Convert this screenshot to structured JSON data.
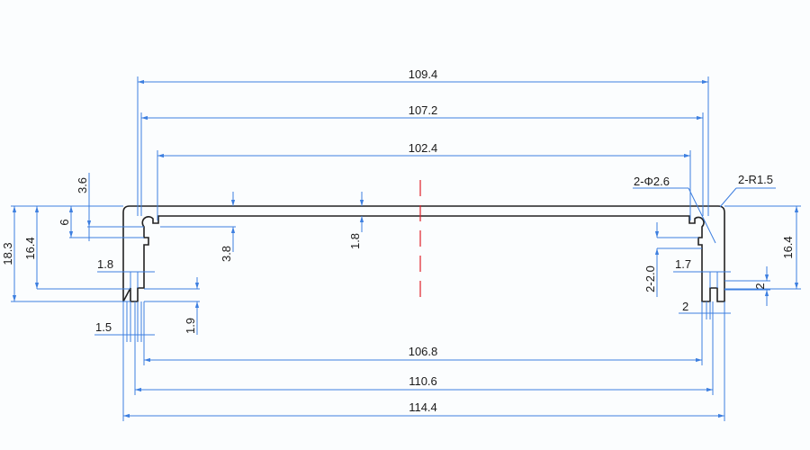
{
  "colors": {
    "dimension": "#3d7fe0",
    "outline": "#222222",
    "centerline": "#e0202a"
  },
  "dimensions": {
    "top_outer": "109.4",
    "top_mid": "107.2",
    "top_inner": "102.4",
    "bottom_inner": "106.8",
    "bottom_mid": "110.6",
    "bottom_outer": "114.4",
    "left_total_height": "18.3",
    "left_height": "16.4",
    "left_groove": "6",
    "left_offset": "3.6",
    "left_slot_width": "1.8",
    "left_leg_width": "1.5",
    "left_slot_depth": "1.9",
    "top_thickness_left": "3.8",
    "top_thickness_center": "1.8",
    "hole": "2-Φ2.6",
    "radius": "2-R1.5",
    "right_height": "16.4",
    "right_groove": "2-2.0",
    "right_slot_width": "1.7",
    "right_leg_width": "2",
    "right_slot_depth": "2"
  }
}
